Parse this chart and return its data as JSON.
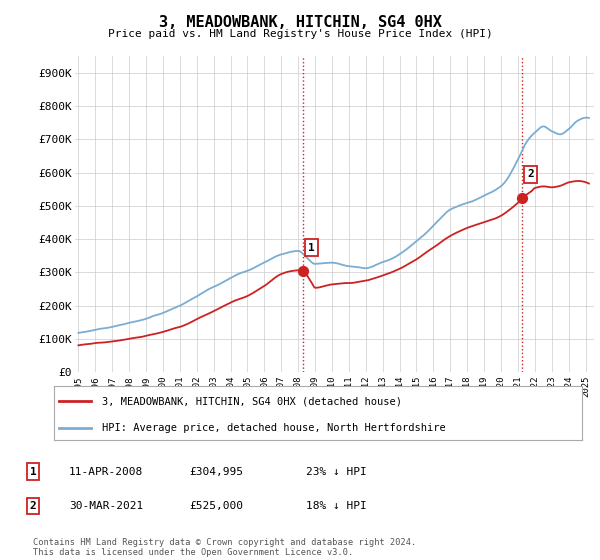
{
  "title": "3, MEADOWBANK, HITCHIN, SG4 0HX",
  "subtitle": "Price paid vs. HM Land Registry's House Price Index (HPI)",
  "ylabel_ticks": [
    "£0",
    "£100K",
    "£200K",
    "£300K",
    "£400K",
    "£500K",
    "£600K",
    "£700K",
    "£800K",
    "£900K"
  ],
  "ytick_values": [
    0,
    100000,
    200000,
    300000,
    400000,
    500000,
    600000,
    700000,
    800000,
    900000
  ],
  "ylim": [
    0,
    950000
  ],
  "xlim_start": 1994.8,
  "xlim_end": 2025.5,
  "xtick_years": [
    1995,
    1996,
    1997,
    1998,
    1999,
    2000,
    2001,
    2002,
    2003,
    2004,
    2005,
    2006,
    2007,
    2008,
    2009,
    2010,
    2011,
    2012,
    2013,
    2014,
    2015,
    2016,
    2017,
    2018,
    2019,
    2020,
    2021,
    2022,
    2023,
    2024,
    2025
  ],
  "hpi_color": "#7aadd4",
  "price_color": "#cc2222",
  "vline_color": "#cc2222",
  "marker1_x": 2008.28,
  "marker1_y": 304995,
  "marker2_x": 2021.25,
  "marker2_y": 525000,
  "legend_line1": "3, MEADOWBANK, HITCHIN, SG4 0HX (detached house)",
  "legend_line2": "HPI: Average price, detached house, North Hertfordshire",
  "table_row1": [
    "1",
    "11-APR-2008",
    "£304,995",
    "23% ↓ HPI"
  ],
  "table_row2": [
    "2",
    "30-MAR-2021",
    "£525,000",
    "18% ↓ HPI"
  ],
  "footnote": "Contains HM Land Registry data © Crown copyright and database right 2024.\nThis data is licensed under the Open Government Licence v3.0.",
  "background_color": "#ffffff",
  "grid_color": "#cccccc"
}
